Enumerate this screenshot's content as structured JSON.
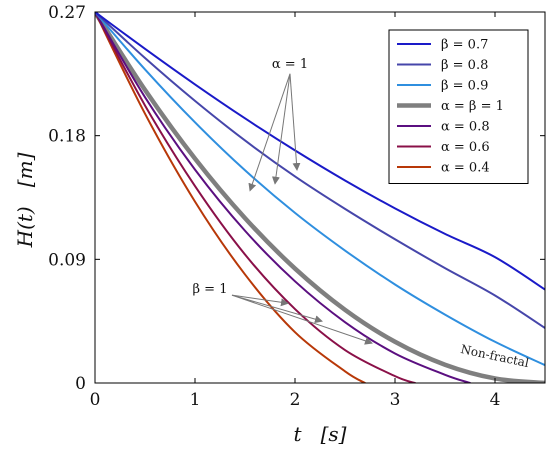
{
  "chart_data": {
    "type": "line",
    "xlabel": "t   [s]",
    "ylabel": "H(t)   [m]",
    "xlim": [
      0,
      4.5
    ],
    "ylim": [
      0,
      0.27
    ],
    "x_ticks": [
      "0",
      "1",
      "2",
      "3",
      "4"
    ],
    "y_ticks": [
      "0",
      "0.09",
      "0.18",
      "0.27"
    ],
    "grid": false,
    "legend_position": "top-right",
    "series": [
      {
        "name": "β = 0.7",
        "color": "#1a1ac8",
        "width": 2,
        "x": [
          0,
          0.5,
          1,
          1.5,
          2,
          2.5,
          3,
          3.5,
          4,
          4.5
        ],
        "y": [
          0.27,
          0.2432,
          0.2173,
          0.1926,
          0.1693,
          0.1474,
          0.1271,
          0.1085,
          0.0916,
          0.068
        ]
      },
      {
        "name": "β = 0.8",
        "color": "#4646aa",
        "width": 2,
        "x": [
          0,
          0.5,
          1,
          1.5,
          2,
          2.5,
          3,
          3.5,
          4,
          4.5
        ],
        "y": [
          0.27,
          0.2365,
          0.2053,
          0.1765,
          0.1503,
          0.1267,
          0.1046,
          0.0836,
          0.0637,
          0.04
        ]
      },
      {
        "name": "β = 0.9",
        "color": "#2f8fdf",
        "width": 2,
        "x": [
          0,
          0.5,
          1,
          1.5,
          2,
          2.5,
          3,
          3.5,
          4,
          4.5
        ],
        "y": [
          0.27,
          0.2282,
          0.1897,
          0.1548,
          0.1238,
          0.0964,
          0.0717,
          0.0498,
          0.03,
          0.013
        ]
      },
      {
        "name": "α = β = 1",
        "color": "#7f7f7f",
        "width": 4.5,
        "x": [
          0,
          0.5,
          1,
          1.5,
          2,
          2.5,
          3,
          3.5,
          4,
          4.5
        ],
        "y": [
          0.27,
          0.2133,
          0.1633,
          0.12,
          0.0833,
          0.0533,
          0.03,
          0.0133,
          0.0033,
          0
        ]
      },
      {
        "name": "α = 0.8",
        "color": "#5b0f80",
        "width": 2,
        "x": [
          0,
          0.5,
          1,
          1.5,
          2,
          2.5,
          3,
          3.5,
          3.75
        ],
        "y": [
          0.27,
          0.208,
          0.1553,
          0.1108,
          0.074,
          0.0443,
          0.0215,
          0.006,
          0
        ]
      },
      {
        "name": "α = 0.6",
        "color": "#8a1048",
        "width": 2,
        "x": [
          0,
          0.5,
          1,
          1.5,
          2,
          2.5,
          3,
          3.2
        ],
        "y": [
          0.27,
          0.202,
          0.1433,
          0.0935,
          0.0538,
          0.024,
          0.005,
          0
        ]
      },
      {
        "name": "α = 0.4",
        "color": "#b83808",
        "width": 2,
        "x": [
          0,
          0.5,
          1,
          1.5,
          2,
          2.5,
          2.7
        ],
        "y": [
          0.27,
          0.196,
          0.132,
          0.079,
          0.037,
          0.0085,
          0
        ]
      }
    ],
    "annotations": [
      {
        "text": "α = 1",
        "from": [
          1.95,
          0.225
        ],
        "to": [
          [
            1.55,
            0.14
          ],
          [
            1.8,
            0.145
          ],
          [
            2.02,
            0.155
          ]
        ]
      },
      {
        "text": "β = 1",
        "from": [
          1.15,
          0.061
        ],
        "to": [
          [
            1.93,
            0.058
          ],
          [
            2.27,
            0.045
          ],
          [
            2.77,
            0.029
          ]
        ]
      },
      {
        "text": "Non-fractal",
        "at": [
          3.65,
          0.022
        ],
        "rotate": 12
      }
    ]
  }
}
